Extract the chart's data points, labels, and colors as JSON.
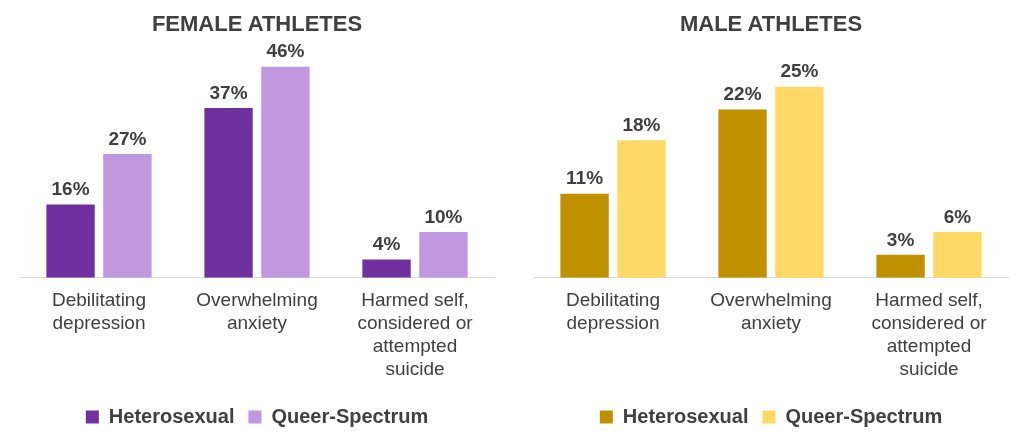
{
  "chart_data": [
    {
      "type": "bar",
      "title": "FEMALE ATHLETES",
      "categories": [
        "Debilitating depression",
        "Overwhelming anxiety",
        "Harmed self, considered or attempted suicide"
      ],
      "series": [
        {
          "name": "Heterosexual",
          "color": "#7030a0",
          "values": [
            16,
            37,
            4
          ],
          "value_labels": [
            "16%",
            "37%",
            "4%"
          ]
        },
        {
          "name": "Queer-Spectrum",
          "color": "#c197e0",
          "values": [
            27,
            46,
            10
          ],
          "value_labels": [
            "27%",
            "46%",
            "10%"
          ]
        }
      ],
      "legend": "bottom",
      "grid": false,
      "tick_labels": "x"
    },
    {
      "type": "bar",
      "title": "MALE ATHLETES",
      "categories": [
        "Debilitating depression",
        "Overwhelming anxiety",
        "Harmed self, considered or attempted suicide"
      ],
      "series": [
        {
          "name": "Heterosexual",
          "color": "#bf9000",
          "values": [
            11,
            22,
            3
          ],
          "value_labels": [
            "11%",
            "22%",
            "3%"
          ]
        },
        {
          "name": "Queer-Spectrum",
          "color": "#ffd966",
          "values": [
            18,
            25,
            6
          ],
          "value_labels": [
            "18%",
            "25%",
            "6%"
          ]
        }
      ],
      "legend": "bottom",
      "grid": false,
      "tick_labels": "x"
    }
  ]
}
